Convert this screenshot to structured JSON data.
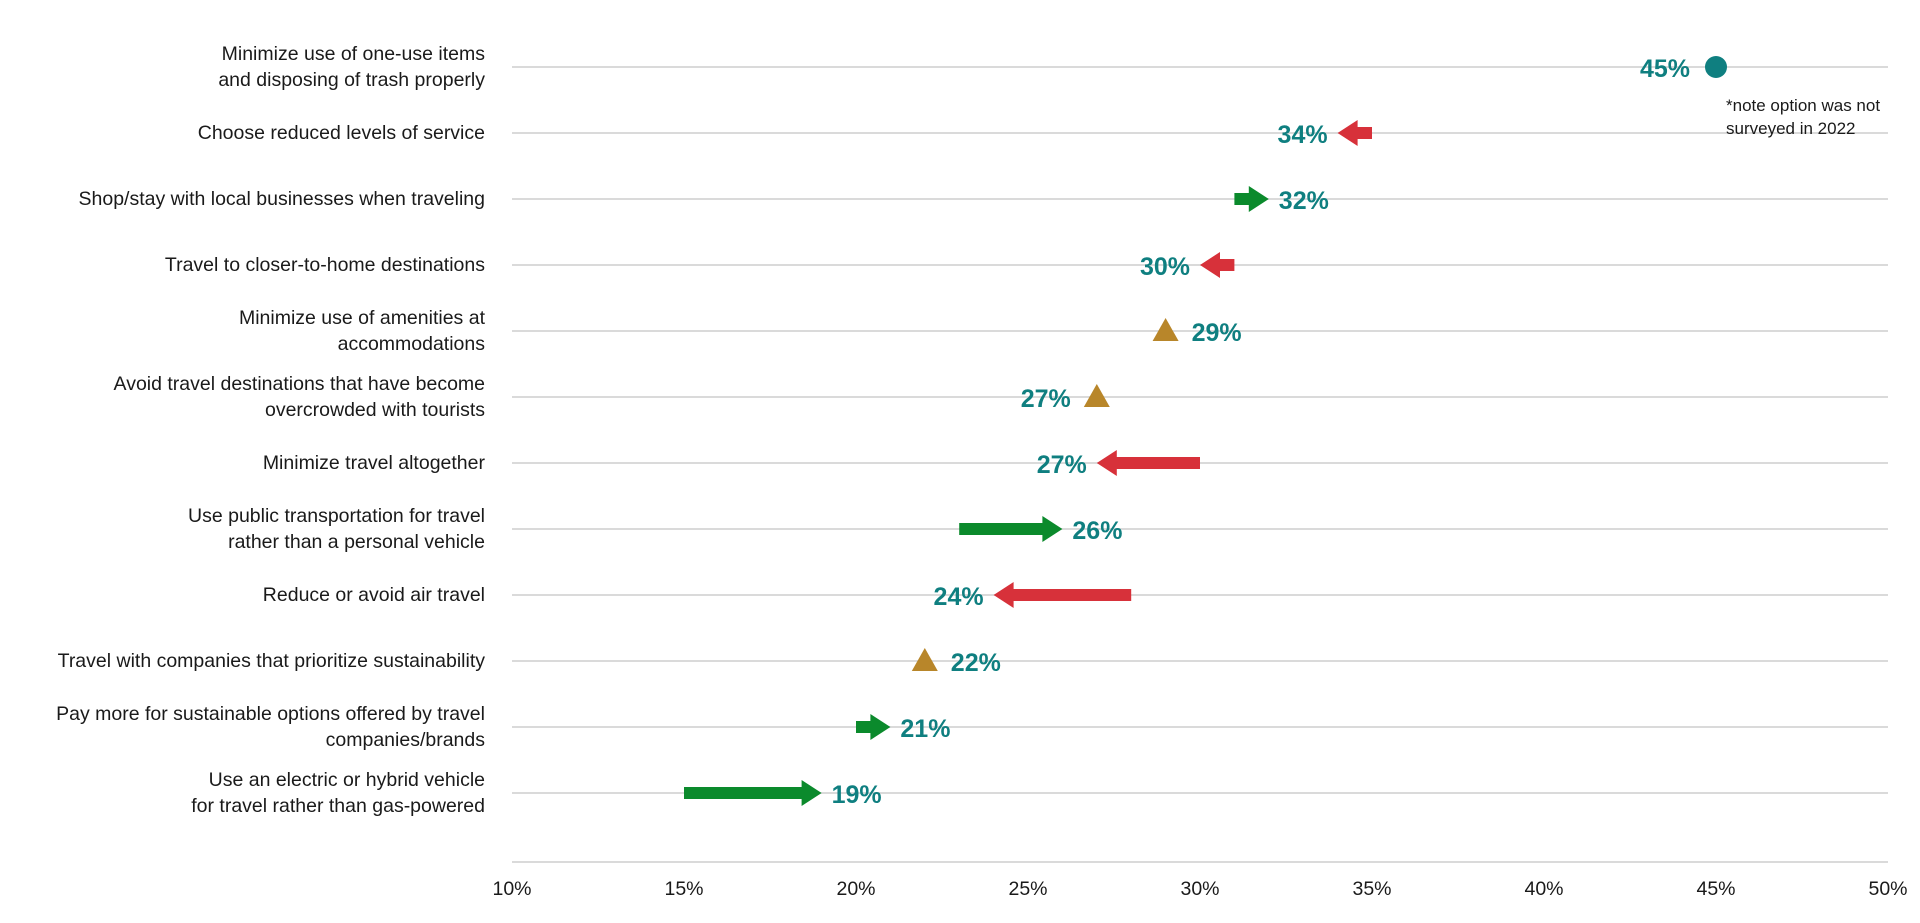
{
  "colors": {
    "value_text": "#0f7f80",
    "increase": "#0b8a2c",
    "decrease": "#d7313a",
    "no_change": "#b8862a",
    "new_option": "#0f7f80",
    "grid": "#d4d4d4",
    "label_text": "#1a1a1a"
  },
  "note_lines": [
    "*note option was not",
    "surveyed in 2022"
  ],
  "chart_data": {
    "type": "dumbbell-arrow",
    "x_axis": {
      "min": 10,
      "max": 50,
      "ticks": [
        10,
        15,
        20,
        25,
        30,
        35,
        40,
        45,
        50
      ],
      "tick_labels": [
        "10%",
        "15%",
        "20%",
        "25%",
        "30%",
        "35%",
        "40%",
        "45%",
        "50%"
      ]
    },
    "rows": [
      {
        "lines": [
          "Minimize use of one-use items",
          "and disposing of trash properly"
        ],
        "value": 45,
        "previous": null,
        "marker": "circle",
        "value_label": "45%"
      },
      {
        "lines": [
          "Choose reduced levels of service"
        ],
        "value": 34,
        "previous": 35,
        "marker": "arrow",
        "value_label": "34%"
      },
      {
        "lines": [
          "Shop/stay with local businesses when traveling"
        ],
        "value": 32,
        "previous": 31,
        "marker": "arrow",
        "value_label": "32%"
      },
      {
        "lines": [
          "Travel to closer-to-home destinations"
        ],
        "value": 30,
        "previous": 31,
        "marker": "arrow",
        "value_label": "30%"
      },
      {
        "lines": [
          "Minimize use of amenities at",
          "accommodations"
        ],
        "value": 29,
        "previous": 29,
        "marker": "triangle",
        "value_label": "29%"
      },
      {
        "lines": [
          "Avoid travel destinations that have become",
          "overcrowded with tourists"
        ],
        "value": 27,
        "previous": 27,
        "marker": "triangle",
        "value_label": "27%"
      },
      {
        "lines": [
          "Minimize travel altogether"
        ],
        "value": 27,
        "previous": 30,
        "marker": "arrow",
        "value_label": "27%"
      },
      {
        "lines": [
          "Use public transportation for travel",
          "rather than a personal vehicle"
        ],
        "value": 26,
        "previous": 23,
        "marker": "arrow",
        "value_label": "26%"
      },
      {
        "lines": [
          "Reduce or avoid air travel"
        ],
        "value": 24,
        "previous": 28,
        "marker": "arrow",
        "value_label": "24%"
      },
      {
        "lines": [
          "Travel with companies that prioritize sustainability"
        ],
        "value": 22,
        "previous": 22,
        "marker": "triangle",
        "value_label": "22%"
      },
      {
        "lines": [
          "Pay more for sustainable options offered by travel",
          "companies/brands"
        ],
        "value": 21,
        "previous": 20,
        "marker": "arrow",
        "value_label": "21%"
      },
      {
        "lines": [
          "Use an electric or hybrid vehicle",
          "for travel rather than gas-powered"
        ],
        "value": 19,
        "previous": 15,
        "marker": "arrow",
        "value_label": "19%"
      }
    ]
  }
}
